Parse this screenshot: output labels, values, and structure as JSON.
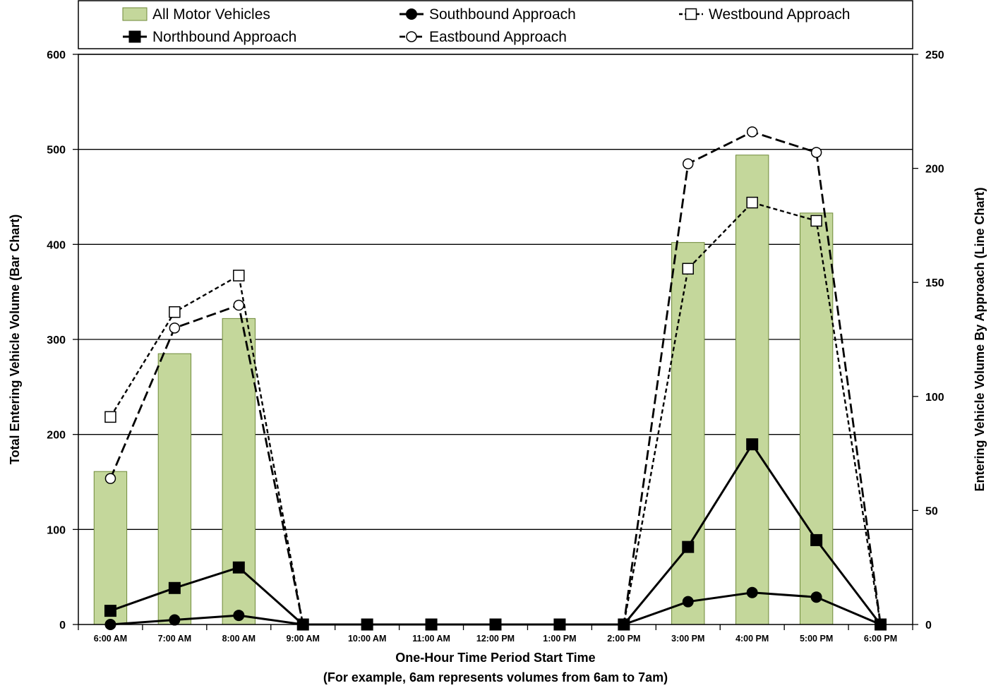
{
  "chart_data": {
    "type": "bar",
    "categories": [
      "6:00 AM",
      "7:00 AM",
      "8:00 AM",
      "9:00 AM",
      "10:00 AM",
      "11:00 AM",
      "12:00 PM",
      "1:00 PM",
      "2:00 PM",
      "3:00 PM",
      "4:00 PM",
      "5:00 PM",
      "6:00 PM"
    ],
    "xlabel": "One-Hour Time Period Start Time",
    "xlabel2": "(For example, 6am represents volumes from 6am to 7am)",
    "ylabel": "Total Entering Vehicle Volume (Bar Chart)",
    "y2label": "Entering Vehicle Volume By Approach (Line Chart)",
    "ylim": [
      0,
      600
    ],
    "y2lim": [
      0,
      250
    ],
    "yticks": [
      0,
      100,
      200,
      300,
      400,
      500,
      600
    ],
    "y2ticks": [
      0,
      50,
      100,
      150,
      200,
      250
    ],
    "grid": true,
    "legend_position": "top",
    "bar_series": {
      "name": "All Motor Vehicles",
      "color": "#c4d79b",
      "values": [
        161,
        285,
        322,
        0,
        0,
        0,
        0,
        0,
        0,
        402,
        494,
        433,
        0
      ]
    },
    "line_series": [
      {
        "name": "Southbound Approach",
        "marker": "filled-circle",
        "line": "solid",
        "values": [
          0,
          2,
          4,
          0,
          0,
          0,
          0,
          0,
          0,
          10,
          14,
          12,
          0
        ]
      },
      {
        "name": "Northbound Approach",
        "marker": "filled-square",
        "line": "solid",
        "values": [
          6,
          16,
          25,
          0,
          0,
          0,
          0,
          0,
          0,
          34,
          79,
          37,
          0
        ]
      },
      {
        "name": "Westbound Approach",
        "marker": "open-square",
        "line": "dotted",
        "values": [
          91,
          137,
          153,
          0,
          0,
          0,
          0,
          0,
          0,
          156,
          185,
          177,
          0
        ]
      },
      {
        "name": "Eastbound Approach",
        "marker": "open-circle",
        "line": "dashed",
        "values": [
          64,
          130,
          140,
          0,
          0,
          0,
          0,
          0,
          0,
          202,
          216,
          207,
          0
        ]
      }
    ]
  }
}
